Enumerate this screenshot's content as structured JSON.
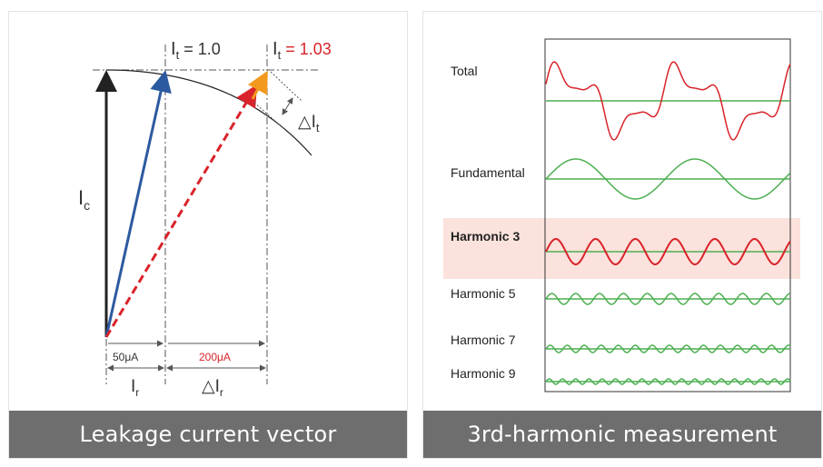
{
  "vector": {
    "caption": "Leakage current vector",
    "it_a_main": "I",
    "it_a_sub": "t",
    "it_a_value": " = 1.0",
    "it_b_main": "I",
    "it_b_sub": "t",
    "it_b_value": " = 1.03",
    "delta_it_sym": "△I",
    "delta_it_sub": "t",
    "ic_main": "I",
    "ic_sub": "c",
    "ir_main": "I",
    "ir_sub": "r",
    "delta_ir_sym": "△I",
    "delta_ir_sub": "r",
    "dim_50": "50μA",
    "dim_200": "200μA",
    "colors": {
      "blue": "#2c5aa0",
      "red": "#d9232a",
      "orange": "#f39a1e",
      "black": "#222222"
    }
  },
  "harmonics": {
    "caption": "3rd-harmonic measurement",
    "labels": [
      "Total",
      "Fundamental",
      "Harmonic 3",
      "Harmonic 5",
      "Harmonic 7",
      "Harmonic 9"
    ],
    "highlight_color": "#fbe2dc",
    "wave_colors": {
      "red": "#d9232a",
      "green": "#4caf50"
    }
  }
}
